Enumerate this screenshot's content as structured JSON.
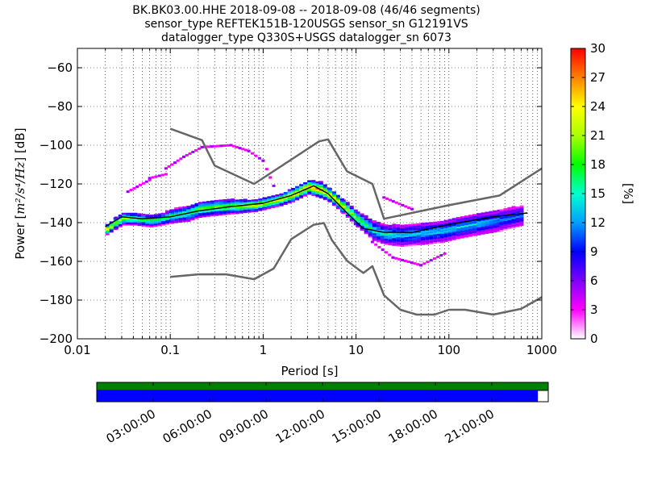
{
  "chart_data": {
    "type": "heatmap",
    "title_lines": [
      "BK.BK03.00.HHE   2018-09-08 -- 2018-09-08  (46/46 segments)",
      "sensor_type REFTEK151B-120USGS sensor_sn G12191VS",
      "datalogger_type Q330S+USGS datalogger_sn 6073"
    ],
    "xlabel": "Period [s]",
    "ylabel_prefix": "Power [",
    "ylabel_units": "m²/s⁴/Hz",
    "ylabel_suffix": "] [dB]",
    "x_scale": "log",
    "xlim": [
      0.01,
      1000
    ],
    "ylim": [
      -200,
      -50
    ],
    "x_ticks": [
      {
        "value": 0.01,
        "label": "0.01"
      },
      {
        "value": 0.1,
        "label": "0.1"
      },
      {
        "value": 1,
        "label": "1"
      },
      {
        "value": 10,
        "label": "10"
      },
      {
        "value": 100,
        "label": "100"
      },
      {
        "value": 1000,
        "label": "1000"
      }
    ],
    "y_ticks": [
      {
        "value": -60,
        "label": "−60"
      },
      {
        "value": -80,
        "label": "−80"
      },
      {
        "value": -100,
        "label": "−100"
      },
      {
        "value": -120,
        "label": "−120"
      },
      {
        "value": -140,
        "label": "−140"
      },
      {
        "value": -160,
        "label": "−160"
      },
      {
        "value": -180,
        "label": "−180"
      },
      {
        "value": -200,
        "label": "−200"
      }
    ],
    "grid": true,
    "colorbar": {
      "label": "[%]",
      "min": 0,
      "max": 30,
      "ticks": [
        {
          "value": 0,
          "label": "0"
        },
        {
          "value": 3,
          "label": "3"
        },
        {
          "value": 6,
          "label": "6"
        },
        {
          "value": 9,
          "label": "9"
        },
        {
          "value": 12,
          "label": "12"
        },
        {
          "value": 15,
          "label": "15"
        },
        {
          "value": 18,
          "label": "18"
        },
        {
          "value": 21,
          "label": "21"
        },
        {
          "value": 24,
          "label": "24"
        },
        {
          "value": 27,
          "label": "27"
        },
        {
          "value": 30,
          "label": "30"
        }
      ],
      "colors": [
        "#ffffff",
        "#ff00ff",
        "#7f00ff",
        "#0000ff",
        "#00a0ff",
        "#00ffd0",
        "#00ff00",
        "#aaff00",
        "#ffff00",
        "#ff8000",
        "#ff0000"
      ]
    },
    "series": [
      {
        "role": "noise-model-high",
        "color": "#666666",
        "x": [
          0.1,
          0.22,
          0.3,
          0.8,
          4.0,
          5.0,
          8.0,
          15.0,
          20.0,
          100.0,
          350.0,
          1000.0
        ],
        "y": [
          -91.5,
          -97.4,
          -110.5,
          -120.0,
          -98.0,
          -97.0,
          -113.5,
          -120.0,
          -138.0,
          -131.0,
          -126.0,
          -112.0
        ]
      },
      {
        "role": "noise-model-low",
        "color": "#666666",
        "x": [
          0.1,
          0.2,
          0.4,
          0.8,
          1.3,
          2.0,
          3.5,
          4.5,
          5.5,
          8.0,
          10.0,
          12.0,
          15.0,
          20.0,
          30.0,
          45.0,
          70.0,
          100.0,
          150.0,
          300.0,
          600.0,
          1000.0
        ],
        "y": [
          -168.0,
          -166.7,
          -166.7,
          -169.2,
          -163.7,
          -148.6,
          -141.1,
          -140.2,
          -149.1,
          -159.7,
          -163.2,
          -166.0,
          -162.5,
          -177.5,
          -185.0,
          -187.5,
          -187.5,
          -185.0,
          -185.0,
          -187.5,
          -184.5,
          -178.5
        ]
      },
      {
        "role": "mean",
        "color": "#000000",
        "x": [
          0.02,
          0.03,
          0.05,
          0.1,
          0.2,
          0.4,
          1.0,
          2.0,
          3.5,
          5.0,
          8.0,
          12.0,
          20.0,
          40.0,
          100.0,
          300.0,
          700.0
        ],
        "y": [
          -142.0,
          -137.0,
          -138.0,
          -137.0,
          -134.0,
          -132.0,
          -130.0,
          -126.0,
          -121.0,
          -125.0,
          -135.0,
          -143.0,
          -145.0,
          -145.0,
          -141.0,
          -137.0,
          -135.0
        ]
      }
    ],
    "density": [
      {
        "x": 0.02,
        "y_low": -146,
        "y_high": -141,
        "peak": 24
      },
      {
        "x": 0.025,
        "y_low": -143,
        "y_high": -137,
        "peak": 20
      },
      {
        "x": 0.03,
        "y_low": -141,
        "y_high": -135,
        "peak": 20
      },
      {
        "x": 0.04,
        "y_low": -141,
        "y_high": -135,
        "peak": 18
      },
      {
        "x": 0.06,
        "y_low": -142,
        "y_high": -136,
        "peak": 16
      },
      {
        "x": 0.08,
        "y_low": -141,
        "y_high": -135,
        "peak": 16
      },
      {
        "x": 0.1,
        "y_low": -140,
        "y_high": -133,
        "peak": 16
      },
      {
        "x": 0.15,
        "y_low": -139,
        "y_high": -131,
        "peak": 16
      },
      {
        "x": 0.2,
        "y_low": -137,
        "y_high": -129,
        "peak": 18
      },
      {
        "x": 0.3,
        "y_low": -136,
        "y_high": -128,
        "peak": 18
      },
      {
        "x": 0.5,
        "y_low": -135,
        "y_high": -128,
        "peak": 20
      },
      {
        "x": 0.8,
        "y_low": -134,
        "y_high": -128,
        "peak": 22
      },
      {
        "x": 1.0,
        "y_low": -133,
        "y_high": -127,
        "peak": 22
      },
      {
        "x": 1.5,
        "y_low": -131,
        "y_high": -125,
        "peak": 22
      },
      {
        "x": 2.0,
        "y_low": -129,
        "y_high": -122,
        "peak": 24
      },
      {
        "x": 3.0,
        "y_low": -125,
        "y_high": -118,
        "peak": 26
      },
      {
        "x": 4.0,
        "y_low": -127,
        "y_high": -119,
        "peak": 26
      },
      {
        "x": 5.0,
        "y_low": -129,
        "y_high": -122,
        "peak": 24
      },
      {
        "x": 7.0,
        "y_low": -135,
        "y_high": -128,
        "peak": 22
      },
      {
        "x": 10.0,
        "y_low": -142,
        "y_high": -134,
        "peak": 18
      },
      {
        "x": 15.0,
        "y_low": -149,
        "y_high": -139,
        "peak": 14
      },
      {
        "x": 20.0,
        "y_low": -151,
        "y_high": -141,
        "peak": 14
      },
      {
        "x": 30.0,
        "y_low": -152,
        "y_high": -141,
        "peak": 12
      },
      {
        "x": 50.0,
        "y_low": -151,
        "y_high": -140,
        "peak": 12
      },
      {
        "x": 80.0,
        "y_low": -150,
        "y_high": -139,
        "peak": 12
      },
      {
        "x": 120.0,
        "y_low": -148,
        "y_high": -137,
        "peak": 12
      },
      {
        "x": 200.0,
        "y_low": -146,
        "y_high": -135,
        "peak": 12
      },
      {
        "x": 350.0,
        "y_low": -144,
        "y_high": -133,
        "peak": 10
      },
      {
        "x": 600.0,
        "y_low": -141,
        "y_high": -131,
        "peak": 10
      }
    ],
    "outliers": [
      {
        "x": 0.035,
        "y": -124,
        "x2": 0.06,
        "y2": -118
      },
      {
        "x": 0.06,
        "y": -117,
        "x2": 0.09,
        "y2": -115
      },
      {
        "x": 0.09,
        "y": -112,
        "x2": 0.14,
        "y2": -106
      },
      {
        "x": 0.14,
        "y": -106,
        "x2": 0.22,
        "y2": -101
      },
      {
        "x": 0.22,
        "y": -101,
        "x2": 0.45,
        "y2": -100
      },
      {
        "x": 0.45,
        "y": -100,
        "x2": 0.7,
        "y2": -103
      },
      {
        "x": 0.7,
        "y": -103,
        "x2": 1.0,
        "y2": -108
      },
      {
        "x": 1.0,
        "y": -108,
        "x2": 1.3,
        "y2": -121
      },
      {
        "x": 15.0,
        "y": -150,
        "x2": 25.0,
        "y2": -158
      },
      {
        "x": 25.0,
        "y": -158,
        "x2": 50.0,
        "y2": -162
      },
      {
        "x": 50.0,
        "y": -162,
        "x2": 90.0,
        "y2": -156
      },
      {
        "x": 20.0,
        "y": -127,
        "x2": 40.0,
        "y2": -133
      }
    ],
    "availability": {
      "time_labels": [
        "03:00:00",
        "06:00:00",
        "09:00:00",
        "12:00:00",
        "15:00:00",
        "18:00:00",
        "21:00:00"
      ],
      "time_hours": [
        3,
        6,
        9,
        12,
        15,
        18,
        21
      ],
      "range_hours": [
        0,
        24
      ],
      "upper_bar_color": "#008000",
      "lower_bar_color": "#0000ff",
      "upper_coverage": 1.0,
      "lower_coverage": 0.977
    }
  }
}
